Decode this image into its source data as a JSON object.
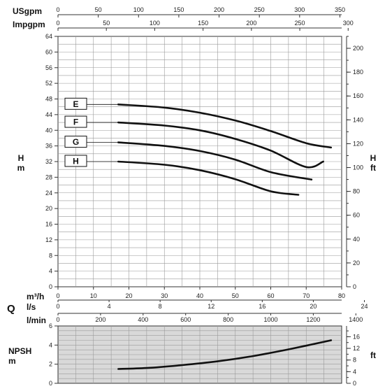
{
  "chart_data": [
    {
      "type": "line",
      "name_hidden": "",
      "x_unit_label": "m³/h",
      "ylabel_left": [
        "H",
        "m"
      ],
      "ylabel_right": [
        "H",
        "ft"
      ],
      "xlim": [
        0,
        80
      ],
      "ylim_left": [
        0,
        64
      ],
      "ylim_right": [
        0,
        210
      ],
      "grid": true,
      "top_axes": [
        {
          "label": "USgpm",
          "max": 352.2,
          "ticks": [
            0,
            50,
            100,
            150,
            200,
            250,
            300,
            350
          ]
        },
        {
          "label": "Impgpm",
          "max": 293.3,
          "ticks": [
            0,
            50,
            100,
            150,
            200,
            250,
            300
          ]
        }
      ],
      "x_ticks": [
        0,
        10,
        20,
        30,
        40,
        50,
        60,
        70,
        80
      ],
      "y_ticks_left": [
        0,
        4,
        8,
        12,
        16,
        20,
        24,
        28,
        32,
        36,
        40,
        44,
        48,
        52,
        56,
        60,
        64
      ],
      "y_ticks_right": [
        0,
        20,
        40,
        60,
        80,
        100,
        120,
        140,
        160,
        180,
        200
      ],
      "series": [
        {
          "name": "E",
          "x": [
            17,
            30,
            40,
            50,
            60,
            70,
            77
          ],
          "y": [
            46.6,
            45.8,
            44.5,
            42.5,
            39.8,
            36.7,
            35.6
          ]
        },
        {
          "name": "F",
          "x": [
            17,
            30,
            40,
            50,
            60,
            70,
            74.8
          ],
          "y": [
            42.0,
            41.2,
            40.0,
            37.8,
            34.8,
            30.6,
            32.0
          ]
        },
        {
          "name": "G",
          "x": [
            17,
            30,
            40,
            50,
            60,
            71.5
          ],
          "y": [
            36.9,
            36.0,
            34.7,
            32.5,
            29.3,
            27.4
          ]
        },
        {
          "name": "H",
          "x": [
            17,
            30,
            40,
            50,
            60,
            67.8
          ],
          "y": [
            32.0,
            31.2,
            29.8,
            27.5,
            24.4,
            23.5
          ]
        }
      ]
    },
    {
      "type": "axes",
      "q_label": "Q",
      "axes": [
        {
          "label": "l/s",
          "max": 22.22,
          "ticks": [
            0,
            4,
            8,
            12,
            16,
            20,
            24
          ]
        },
        {
          "label": "l/min",
          "max": 1333.3,
          "ticks": [
            0,
            200,
            400,
            600,
            800,
            1000,
            1200,
            1400
          ]
        }
      ]
    },
    {
      "type": "line",
      "ylabel_left": [
        "NPSH",
        "m"
      ],
      "ylabel_right": "ft",
      "ylim_left": [
        0,
        6
      ],
      "ylim_right": [
        0,
        19.7
      ],
      "y_ticks_left": [
        0,
        2,
        4,
        6
      ],
      "y_ticks_right": [
        0,
        4,
        8,
        12,
        16
      ],
      "series": [
        {
          "name": "NPSH",
          "x": [
            17,
            25,
            35,
            45,
            55,
            65,
            77
          ],
          "y": [
            1.5,
            1.6,
            1.9,
            2.3,
            2.85,
            3.55,
            4.5
          ]
        }
      ]
    }
  ]
}
